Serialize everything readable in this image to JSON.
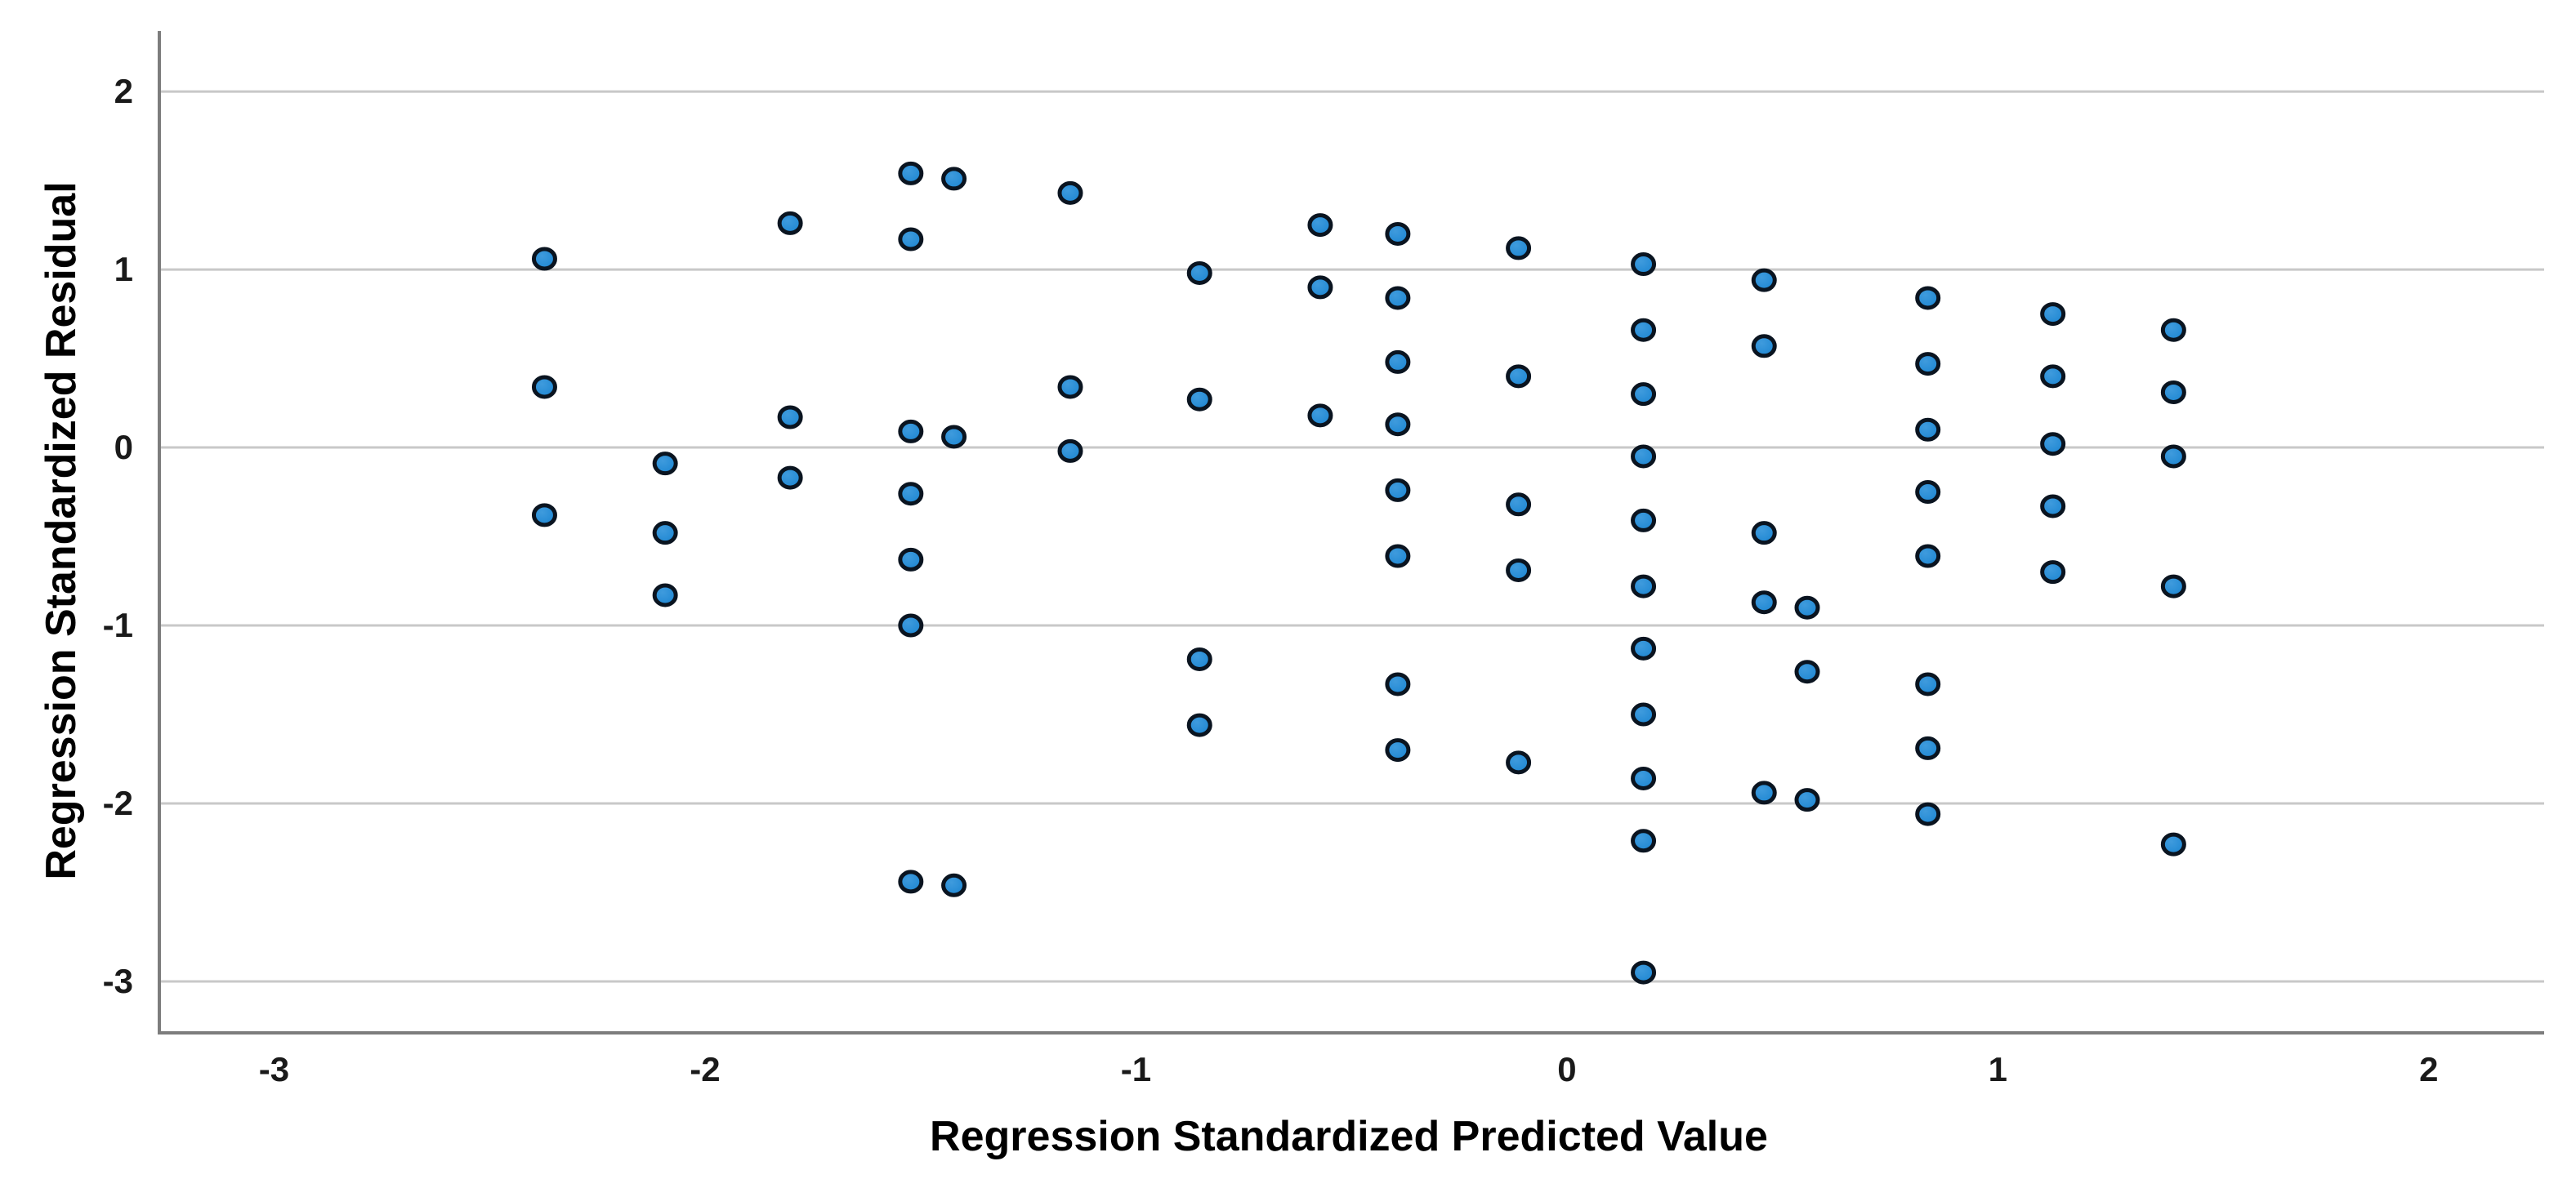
{
  "figure": {
    "background": "#ffffff",
    "plot_border_color": "#7d7d7d"
  },
  "chart_data": {
    "type": "scatter",
    "title": "",
    "xlabel": "Regression Standardized Predicted Value",
    "ylabel": "Regression Standardized Residual",
    "x_ticks": [
      -3,
      -2,
      -1,
      0,
      1,
      2
    ],
    "y_ticks": [
      2,
      1,
      0,
      -1,
      -2,
      -3
    ],
    "xlim": [
      -3.27,
      2.26
    ],
    "ylim": [
      -3.28,
      2.34
    ],
    "grid": "horizontal-only",
    "legend": "none",
    "gridline_color": "#c8c8c8",
    "axis_color": "#7d7d7d",
    "marker": {
      "shape": "ellipse",
      "fill": "#1d86d2",
      "fill_highlight": "#3f9bdd",
      "stroke": "#0a1420",
      "rx": 13,
      "ry": 12,
      "stroke_width": 5
    },
    "points": [
      [
        -2.38,
        1.06
      ],
      [
        -2.38,
        0.34
      ],
      [
        -2.38,
        -0.38
      ],
      [
        -2.1,
        -0.09
      ],
      [
        -2.1,
        -0.48
      ],
      [
        -2.1,
        -0.83
      ],
      [
        -1.81,
        1.26
      ],
      [
        -1.81,
        0.17
      ],
      [
        -1.81,
        -0.17
      ],
      [
        -1.53,
        1.54
      ],
      [
        -1.53,
        1.17
      ],
      [
        -1.53,
        0.09
      ],
      [
        -1.53,
        -0.26
      ],
      [
        -1.53,
        -0.63
      ],
      [
        -1.53,
        -1.0
      ],
      [
        -1.53,
        -2.44
      ],
      [
        -1.43,
        1.51
      ],
      [
        -1.43,
        0.06
      ],
      [
        -1.43,
        -2.46
      ],
      [
        -1.16,
        1.43
      ],
      [
        -1.16,
        0.34
      ],
      [
        -1.16,
        -0.02
      ],
      [
        -0.86,
        0.98
      ],
      [
        -0.86,
        0.27
      ],
      [
        -0.86,
        -1.19
      ],
      [
        -0.86,
        -1.56
      ],
      [
        -0.58,
        1.25
      ],
      [
        -0.58,
        0.9
      ],
      [
        -0.58,
        0.18
      ],
      [
        -0.4,
        1.2
      ],
      [
        -0.4,
        0.84
      ],
      [
        -0.4,
        0.48
      ],
      [
        -0.4,
        0.13
      ],
      [
        -0.4,
        -0.24
      ],
      [
        -0.4,
        -0.61
      ],
      [
        -0.4,
        -1.33
      ],
      [
        -0.4,
        -1.7
      ],
      [
        -0.12,
        1.12
      ],
      [
        -0.12,
        0.4
      ],
      [
        -0.12,
        -0.32
      ],
      [
        -0.12,
        -0.69
      ],
      [
        -0.12,
        -1.77
      ],
      [
        0.17,
        1.03
      ],
      [
        0.17,
        0.66
      ],
      [
        0.17,
        0.3
      ],
      [
        0.17,
        -0.05
      ],
      [
        0.17,
        -0.41
      ],
      [
        0.17,
        -0.78
      ],
      [
        0.17,
        -1.13
      ],
      [
        0.17,
        -1.5
      ],
      [
        0.17,
        -1.86
      ],
      [
        0.17,
        -2.21
      ],
      [
        0.17,
        -2.95
      ],
      [
        0.45,
        0.94
      ],
      [
        0.45,
        0.57
      ],
      [
        0.45,
        -0.48
      ],
      [
        0.45,
        -0.87
      ],
      [
        0.45,
        -1.94
      ],
      [
        0.55,
        -0.9
      ],
      [
        0.55,
        -1.26
      ],
      [
        0.55,
        -1.98
      ],
      [
        0.83,
        0.84
      ],
      [
        0.83,
        0.47
      ],
      [
        0.83,
        0.1
      ],
      [
        0.83,
        -0.25
      ],
      [
        0.83,
        -0.61
      ],
      [
        0.83,
        -1.33
      ],
      [
        0.83,
        -1.69
      ],
      [
        0.83,
        -2.06
      ],
      [
        1.12,
        0.75
      ],
      [
        1.12,
        0.4
      ],
      [
        1.12,
        0.02
      ],
      [
        1.12,
        -0.33
      ],
      [
        1.12,
        -0.7
      ],
      [
        1.4,
        0.66
      ],
      [
        1.4,
        0.31
      ],
      [
        1.4,
        -0.05
      ],
      [
        1.4,
        -0.78
      ],
      [
        1.4,
        -2.23
      ]
    ]
  }
}
